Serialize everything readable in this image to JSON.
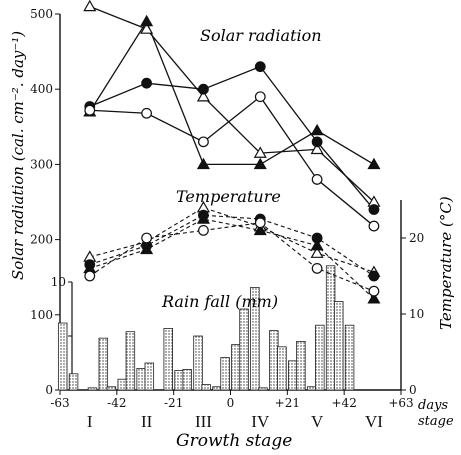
{
  "chart_data": {
    "type": "line",
    "title": "",
    "xlabel": "Growth stage",
    "ylabel_left": "Solar radiation (cal. cm⁻². day⁻¹)",
    "ylabel_right": "Temperature (°C)",
    "x_unit_label_1": "days",
    "x_unit_label_2": "stage",
    "xlim": [
      -63,
      63
    ],
    "ylim_left": [
      0,
      500
    ],
    "ylim_right_temperature": [
      0,
      25
    ],
    "ylim_inner_rain": [
      0,
      10
    ],
    "x_ticks": [
      "-63",
      "-42",
      "-21",
      "0",
      "+21",
      "+42",
      "+63"
    ],
    "x_tick_values": [
      -63,
      -42,
      -21,
      0,
      21,
      42,
      63
    ],
    "stage_labels": [
      "I",
      "II",
      "III",
      "IV",
      "V",
      "VI"
    ],
    "stage_positions": [
      -52,
      -31,
      -10,
      11,
      32,
      53
    ],
    "y_left_ticks": [
      "0",
      "100",
      "200",
      "300",
      "400",
      "500"
    ],
    "y_right_ticks": [
      "0",
      "10",
      "20"
    ],
    "rain_ticks": [
      "5",
      "10"
    ],
    "annotations": {
      "solar": "Solar radiation",
      "temperature": "Temperature",
      "rain": "Rain fall (mm)"
    },
    "solar_radiation": {
      "x": [
        -52,
        -31,
        -10,
        11,
        32,
        53
      ],
      "series": [
        {
          "marker": "triangle-open",
          "values": [
            510,
            480,
            390,
            315,
            320,
            250
          ]
        },
        {
          "marker": "triangle-filled",
          "values": [
            370,
            490,
            300,
            300,
            345,
            300
          ]
        },
        {
          "marker": "circle-filled",
          "values": [
            377,
            408,
            400,
            430,
            330,
            240
          ]
        },
        {
          "marker": "circle-open",
          "values": [
            372,
            368,
            330,
            390,
            280,
            218
          ]
        }
      ]
    },
    "temperature": {
      "x": [
        -52,
        -31,
        -10,
        11,
        32,
        53
      ],
      "series": [
        {
          "marker": "triangle-open",
          "values": [
            17.5,
            19.5,
            24.0,
            21.5,
            18.0,
            15.5
          ]
        },
        {
          "marker": "circle-filled",
          "values": [
            16.5,
            19.0,
            23.0,
            22.5,
            20.0,
            15.0
          ]
        },
        {
          "marker": "triangle-filled",
          "values": [
            16.0,
            18.5,
            22.5,
            21.0,
            19.0,
            12.0
          ]
        },
        {
          "marker": "circle-open",
          "values": [
            15.0,
            20.0,
            21.0,
            22.0,
            16.0,
            13.0
          ]
        }
      ]
    },
    "rainfall": {
      "x": [
        -62,
        -58,
        -51,
        -47,
        -44,
        -40,
        -37,
        -33,
        -30,
        -27,
        -23,
        -19,
        -16,
        -12,
        -9,
        -5,
        -2,
        2,
        5,
        9,
        12,
        16,
        19,
        23,
        26,
        30,
        33,
        37,
        40,
        44,
        47,
        51,
        54,
        58,
        62
      ],
      "values": [
        6.2,
        1.5,
        0.2,
        4.8,
        0.3,
        1.0,
        5.4,
        2.0,
        2.5,
        0,
        5.7,
        1.8,
        1.9,
        5.0,
        0.5,
        0.3,
        3.0,
        4.2,
        7.5,
        9.5,
        0.2,
        5.5,
        4.0,
        2.7,
        4.5,
        0.3,
        6.0,
        11.5,
        8.2,
        6.0,
        0,
        0,
        0,
        0,
        0
      ]
    }
  }
}
